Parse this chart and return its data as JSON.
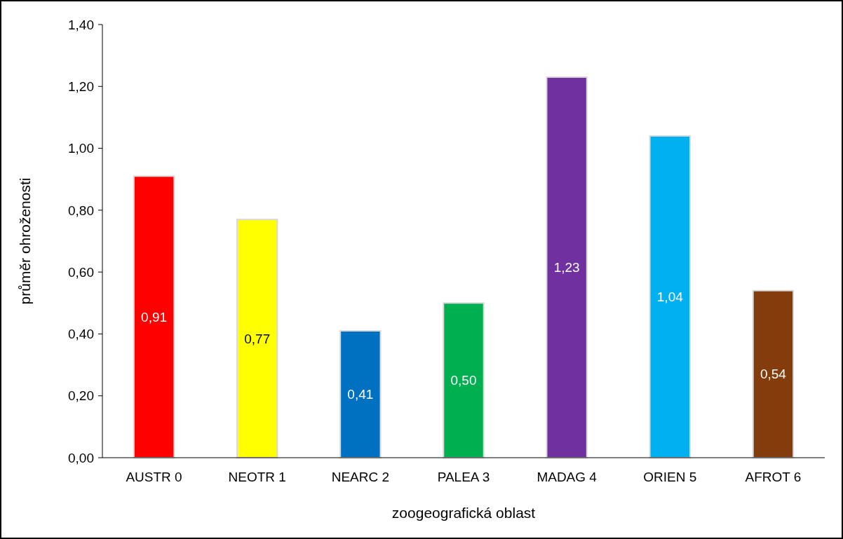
{
  "chart_data": {
    "type": "bar",
    "xlabel": "zoogeografická oblast",
    "ylabel": "průměr ohroženosti",
    "categories": [
      "AUSTR 0",
      "NEOTR 1",
      "NEARC 2",
      "PALEA 3",
      "MADAG 4",
      "ORIEN 5",
      "AFROT 6"
    ],
    "values": [
      0.91,
      0.77,
      0.41,
      0.5,
      1.23,
      1.04,
      0.54
    ],
    "colors": [
      "#ff0000",
      "#ffff00",
      "#0070c0",
      "#00b050",
      "#7030a0",
      "#00b0f0",
      "#843c0c"
    ],
    "value_labels": [
      "0,91",
      "0,77",
      "0,41",
      "0,50",
      "1,23",
      "1,04",
      "0,54"
    ],
    "ylim": [
      0,
      1.4
    ],
    "yticks": [
      {
        "value": 0,
        "label": "0,00"
      },
      {
        "value": 0.2,
        "label": "0,20"
      },
      {
        "value": 0.4,
        "label": "0,40"
      },
      {
        "value": 0.6,
        "label": "0,60"
      },
      {
        "value": 0.8,
        "label": "0,80"
      },
      {
        "value": 1,
        "label": "1,00"
      },
      {
        "value": 1.2,
        "label": "1,20"
      },
      {
        "value": 1.4,
        "label": "1,40"
      }
    ],
    "grid": false
  }
}
